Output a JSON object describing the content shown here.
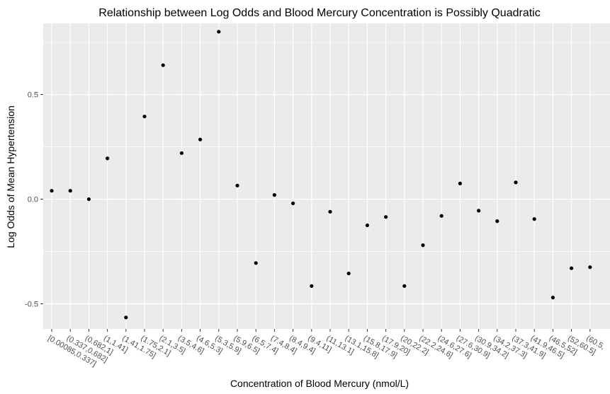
{
  "chart_data": {
    "type": "scatter",
    "title": "Relationship between Log Odds and Blood Mercury Concentration is Possibly Quadratic",
    "xlabel": "Concentration of Blood Mercury (nmol/L)",
    "ylabel": "Log Odds of Mean Hypertension",
    "ylim": [
      -0.62,
      0.84
    ],
    "yticks": [
      -0.5,
      0.0,
      0.5
    ],
    "ytick_labels": [
      "-0.5",
      "0.0",
      "0.5"
    ],
    "grid": true,
    "legend": "none",
    "colors": {
      "panel": "#ebebeb",
      "grid": "#ffffff",
      "point": "#000000"
    },
    "categories": [
      "[0.00085,0.337]",
      "(0.337,0.682]",
      "(0.682,1]",
      "(1,1.41]",
      "(1.41,1.75]",
      "(1.75,2.1]",
      "(2.1,3.5]",
      "(3.5,4.6]",
      "(4.6,5.3]",
      "(5.3,5.9]",
      "(5.9,6.5]",
      "(6.5,7.4]",
      "(7.4,8.4]",
      "(8.4,9.4]",
      "(9.4,11]",
      "(11,13.1]",
      "(13.1,15.8]",
      "(15.8,17.9]",
      "(17.9,20]",
      "(20,22.2]",
      "(22.2,24.6]",
      "(24.6,27.6]",
      "(27.6,30.9]",
      "(30.9,34.2]",
      "(34.2,37.3]",
      "(37.3,41.9]",
      "(41.9,46.5]",
      "(46.5,52]",
      "(52,60.5]",
      "(60.5,"
    ],
    "values": [
      0.04,
      0.04,
      0.0,
      0.195,
      -0.565,
      0.395,
      0.64,
      0.22,
      0.285,
      0.8,
      0.065,
      -0.305,
      0.02,
      -0.02,
      -0.415,
      -0.06,
      -0.355,
      -0.125,
      -0.085,
      -0.415,
      -0.22,
      -0.08,
      0.075,
      -0.055,
      -0.105,
      0.08,
      -0.095,
      -0.47,
      -0.33,
      -0.325
    ]
  }
}
